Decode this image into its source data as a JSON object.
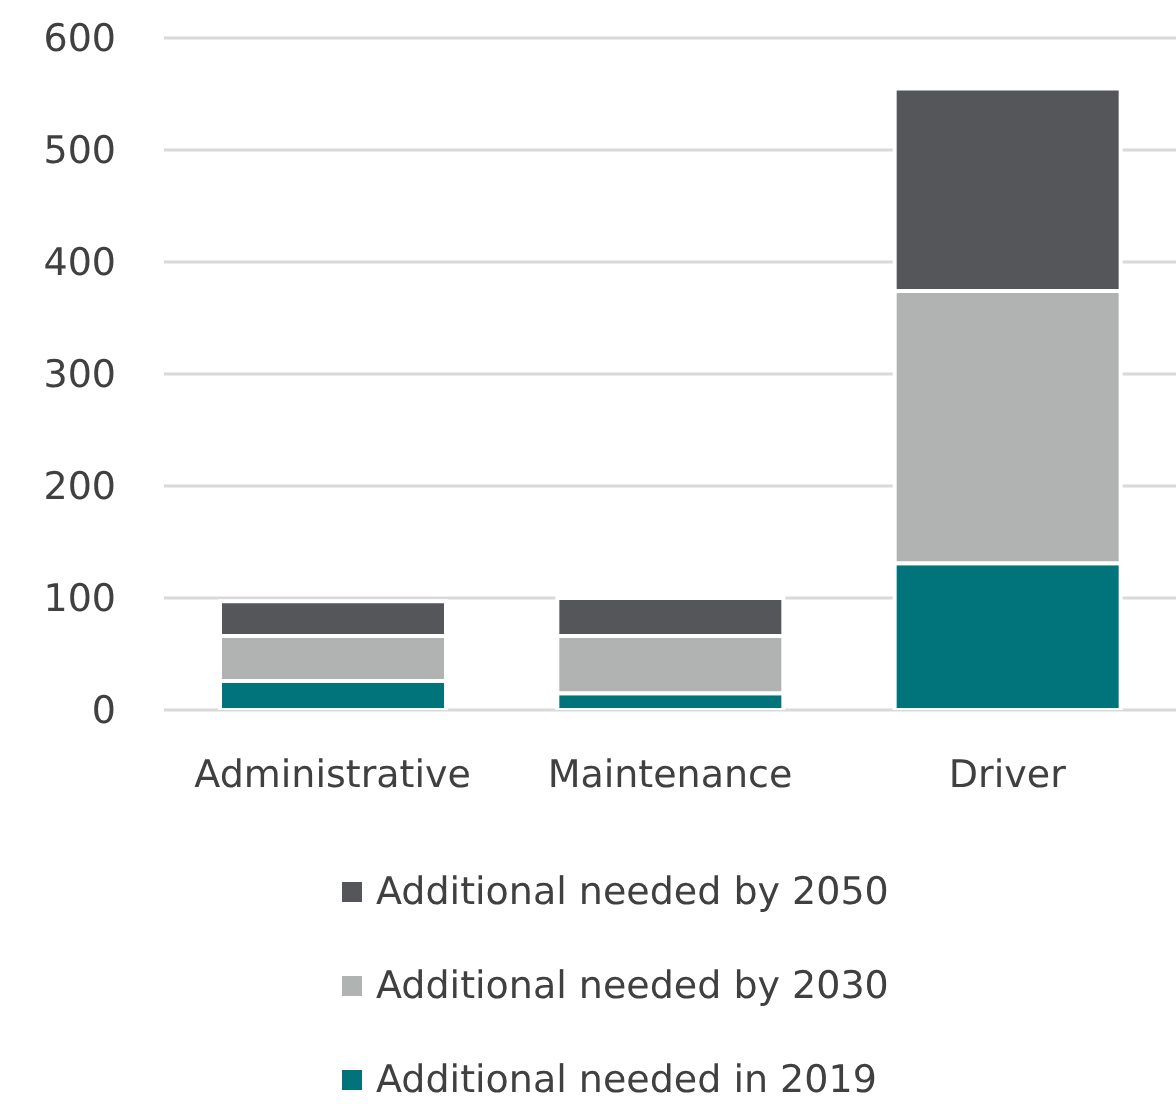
{
  "chart_data": {
    "type": "bar",
    "stacked": true,
    "categories": [
      "Administrative",
      "Maintenance",
      "Driver"
    ],
    "series": [
      {
        "name": "Additional needed in 2019",
        "color": "#00747a",
        "values": [
          26,
          15,
          131
        ]
      },
      {
        "name": "Additional needed by 2030",
        "color": "#b1b3b3",
        "values": [
          40,
          51,
          243
        ]
      },
      {
        "name": "Additional needed by 2050",
        "color": "#54565a",
        "values": [
          31,
          34,
          181
        ]
      }
    ],
    "ylim": [
      0,
      600
    ],
    "yticks": [
      0,
      100,
      200,
      300,
      400,
      500,
      600
    ],
    "grid": "y",
    "legend": "bottom"
  }
}
